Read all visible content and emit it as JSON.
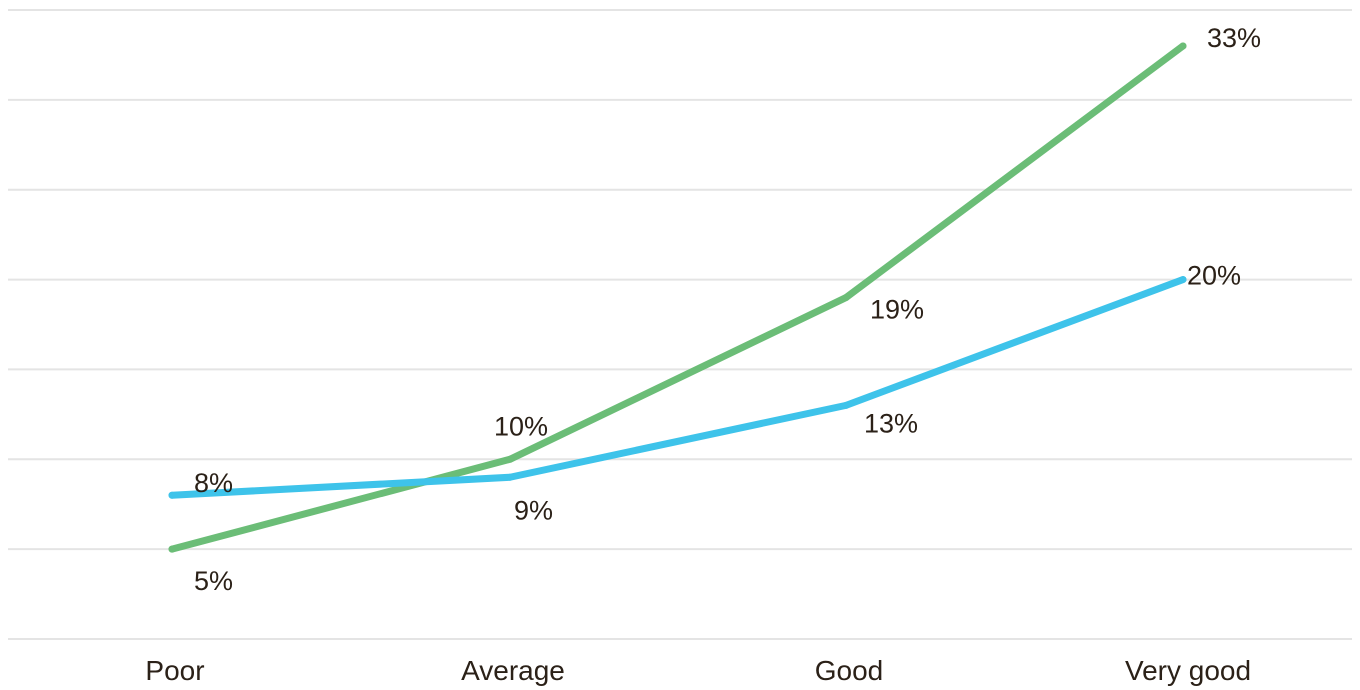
{
  "chart_data": {
    "type": "line",
    "title": "",
    "xlabel": "",
    "ylabel": "",
    "categories": [
      "Poor",
      "Average",
      "Good",
      "Very good"
    ],
    "ylim": [
      0,
      35
    ],
    "y_gridlines": [
      0,
      5,
      10,
      15,
      20,
      25,
      30,
      35
    ],
    "grid": true,
    "legend": "none",
    "series": [
      {
        "color": "#6bbd77",
        "values": [
          5,
          10,
          19,
          33
        ],
        "labels": [
          "5%",
          "10%",
          "19%",
          "33%"
        ]
      },
      {
        "color": "#3ec3ea",
        "values": [
          8,
          9,
          13,
          20
        ],
        "labels": [
          "8%",
          "9%",
          "13%",
          "20%"
        ]
      }
    ]
  }
}
